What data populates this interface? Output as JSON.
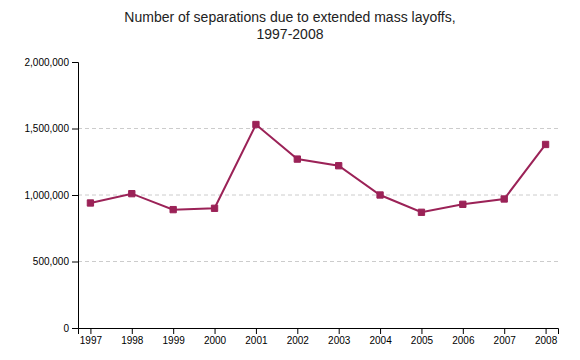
{
  "chart_data": {
    "type": "line",
    "title": "Number of separations due to extended mass layoffs,\n1997-2008",
    "x": [
      1997,
      1998,
      1999,
      2000,
      2001,
      2002,
      2003,
      2004,
      2005,
      2006,
      2007,
      2008
    ],
    "values": [
      940000,
      1010000,
      890000,
      900000,
      1530000,
      1270000,
      1220000,
      1000000,
      870000,
      930000,
      970000,
      1380000
    ],
    "color": "#9b2257",
    "marker": "square",
    "xlim": [
      1996.7,
      2008.3
    ],
    "xticks": [
      1997,
      1998,
      1999,
      2000,
      2001,
      2002,
      2003,
      2004,
      2005,
      2006,
      2007,
      2008
    ],
    "ylim": [
      0,
      2000000
    ],
    "yticks": [
      0,
      {
        "value": 500000,
        "label": "500,000"
      },
      {
        "value": 1000000,
        "label": "1,000,000"
      },
      {
        "value": 1500000,
        "label": "1,500,000"
      },
      {
        "value": 2000000,
        "label": "2,000,000"
      }
    ],
    "grid": true
  }
}
